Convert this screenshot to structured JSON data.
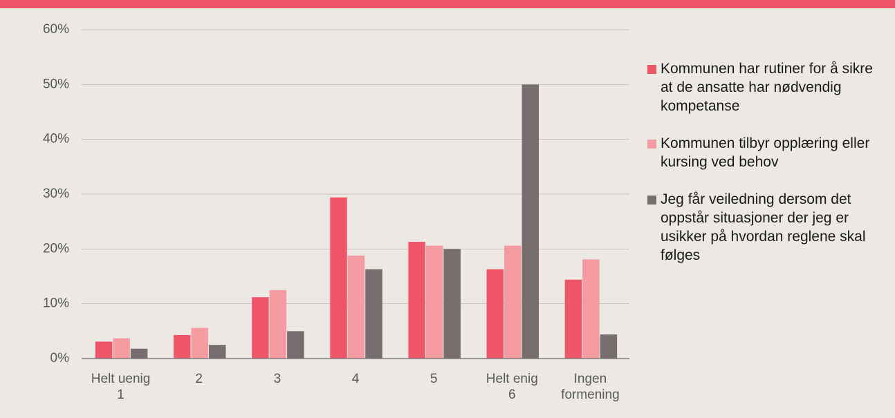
{
  "chart_data": {
    "type": "bar",
    "categories": [
      "Helt uenig\n1",
      "2",
      "3",
      "4",
      "5",
      "Helt enig\n6",
      "Ingen\nformening"
    ],
    "series": [
      {
        "name": "Kommunen har rutiner for å sikre at de ansatte har nødvendig kompetanse",
        "color": "#f0566a",
        "values": [
          3.1,
          4.3,
          11.2,
          29.4,
          21.3,
          16.3,
          14.4
        ]
      },
      {
        "name": "Kommunen tilbyr opplæring eller kursing ved behov",
        "color": "#f59ca3",
        "values": [
          3.7,
          5.6,
          12.5,
          18.8,
          20.6,
          20.6,
          18.1
        ]
      },
      {
        "name": "Jeg får veiledning dersom det oppstår situasjoner der jeg er usikker på hvordan reglene skal følges",
        "color": "#786e6f",
        "values": [
          1.8,
          2.5,
          5.0,
          16.3,
          20.0,
          50.0,
          4.4
        ]
      }
    ],
    "ylim": [
      0,
      60
    ],
    "yticks": [
      {
        "value": 0,
        "label": "0%"
      },
      {
        "value": 10,
        "label": "10%"
      },
      {
        "value": 20,
        "label": "20%"
      },
      {
        "value": 30,
        "label": "30%"
      },
      {
        "value": 40,
        "label": "40%"
      },
      {
        "value": 50,
        "label": "50%"
      },
      {
        "value": 60,
        "label": "60%"
      }
    ],
    "grid": true,
    "legend": "right"
  }
}
